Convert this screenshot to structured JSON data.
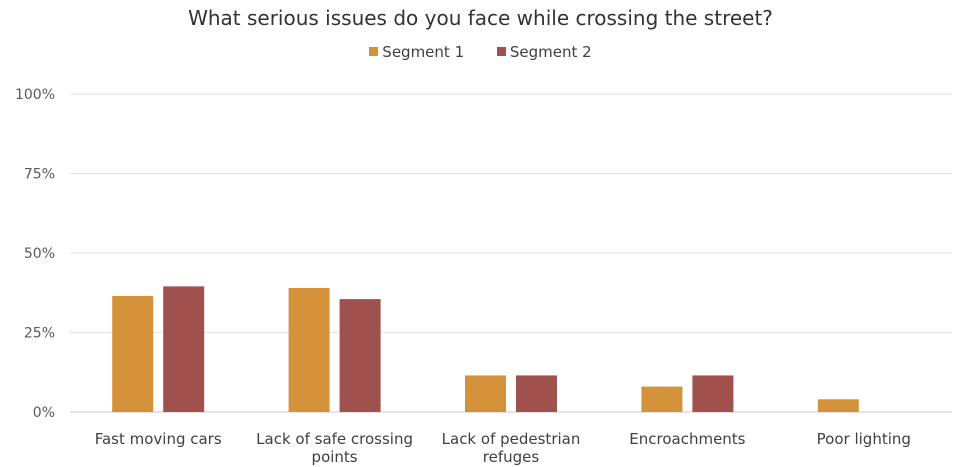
{
  "chart_data": {
    "type": "bar",
    "title": "What serious issues do you face while crossing the street?",
    "categories": [
      [
        "Fast moving cars"
      ],
      [
        "Lack of safe crossing",
        "points"
      ],
      [
        "Lack of pedestrian",
        "refuges"
      ],
      [
        "Encroachments"
      ],
      [
        "Poor lighting"
      ]
    ],
    "series": [
      {
        "name": "Segment 1",
        "color": "#d4923a",
        "values": [
          36.5,
          39,
          11.5,
          8,
          4
        ]
      },
      {
        "name": "Segment 2",
        "color": "#a0504d",
        "values": [
          39.5,
          35.5,
          11.5,
          11.5,
          0
        ]
      }
    ],
    "yticks": [
      "0%",
      "25%",
      "50%",
      "75%",
      "100%"
    ],
    "ylim": [
      0,
      100
    ],
    "grid": true,
    "legend_position": "top"
  }
}
